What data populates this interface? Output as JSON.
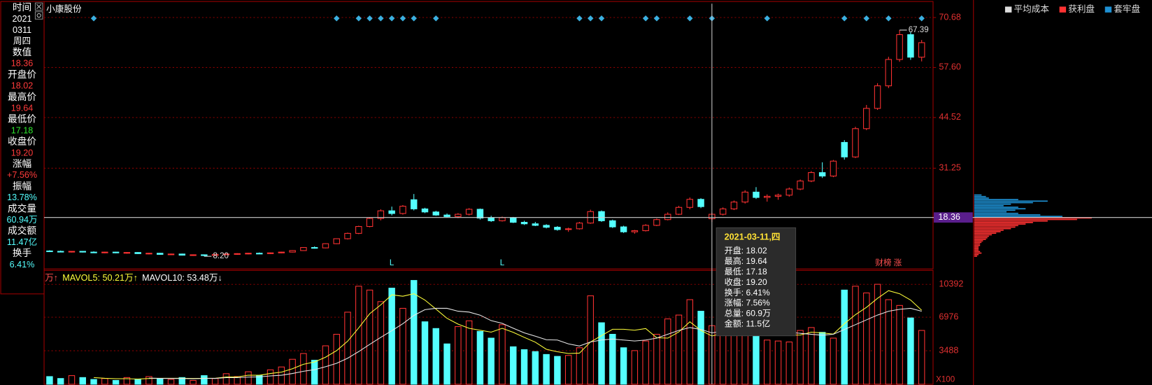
{
  "info_panel": {
    "items": [
      {
        "label": "时间",
        "values": [
          "2021",
          "0311",
          "周四"
        ],
        "color": "#ffffff"
      },
      {
        "label": "数值",
        "values": [
          "18.36"
        ],
        "color": "#ff3b3b"
      },
      {
        "label": "开盘价",
        "values": [
          "18.02"
        ],
        "color": "#ff3b3b"
      },
      {
        "label": "最高价",
        "values": [
          "19.64"
        ],
        "color": "#ff3b3b"
      },
      {
        "label": "最低价",
        "values": [
          "17.18"
        ],
        "color": "#2ee82e"
      },
      {
        "label": "收盘价",
        "values": [
          "19.20"
        ],
        "color": "#ff3b3b"
      },
      {
        "label": "涨幅",
        "values": [
          "+7.56%"
        ],
        "color": "#ff3b3b"
      },
      {
        "label": "振幅",
        "values": [
          "13.78%"
        ],
        "color": "#54ffff"
      },
      {
        "label": "成交量",
        "values": [
          "60.94万"
        ],
        "color": "#54ffff"
      },
      {
        "label": "成交额",
        "values": [
          "11.47亿"
        ],
        "color": "#54ffff"
      },
      {
        "label": "换手",
        "values": [
          "6.41%"
        ],
        "color": "#54ffff"
      }
    ]
  },
  "tooltip": {
    "title": "2021-03-11,四",
    "lines": [
      "开盘: 18.02",
      "最高: 19.64",
      "最低: 17.18",
      "收盘: 19.20",
      "换手: 6.41%",
      "涨幅: 7.56%",
      "总量: 60.9万",
      "金额: 11.5亿"
    ]
  },
  "chip_legend": [
    {
      "name": "平均成本",
      "color": "#dddddd"
    },
    {
      "name": "获利盘",
      "color": "#ff3232"
    },
    {
      "name": "套牢盘",
      "color": "#1e90d2"
    }
  ],
  "chart_data": {
    "type": "candlestick",
    "title": "小康股份",
    "up_color": "#ff3232",
    "down_color": "#54ffff",
    "grid": true,
    "categories": [
      null,
      null,
      null,
      null,
      null,
      null,
      null,
      null,
      null,
      null,
      null,
      null,
      null,
      null,
      null,
      null,
      null,
      null,
      null,
      null,
      null,
      null,
      null,
      null,
      null,
      null,
      null,
      null,
      null,
      null,
      null,
      null,
      null,
      null,
      null,
      null,
      null,
      null,
      null,
      null,
      null,
      null,
      null,
      null,
      null,
      null,
      null,
      null,
      null,
      null,
      null,
      null,
      null,
      null,
      null,
      null,
      null,
      null,
      null,
      null,
      null,
      null,
      null,
      null,
      null,
      null,
      null,
      null,
      null,
      null,
      null,
      null,
      null,
      null,
      null,
      null,
      null,
      null,
      null,
      null
    ],
    "candles": [
      [
        9.6,
        9.8,
        9.4,
        9.5
      ],
      [
        9.5,
        9.7,
        9.3,
        9.4
      ],
      [
        9.4,
        9.6,
        9.2,
        9.5
      ],
      [
        9.5,
        9.6,
        9.2,
        9.3
      ],
      [
        9.3,
        9.5,
        9.1,
        9.2
      ],
      [
        9.2,
        9.4,
        9.0,
        9.3
      ],
      [
        9.3,
        9.4,
        9.0,
        9.1
      ],
      [
        9.1,
        9.3,
        8.9,
        9.2
      ],
      [
        9.2,
        9.3,
        8.8,
        8.9
      ],
      [
        8.9,
        9.1,
        8.7,
        9.0
      ],
      [
        9.0,
        9.1,
        8.6,
        8.7
      ],
      [
        8.7,
        8.9,
        8.5,
        8.8
      ],
      [
        8.8,
        8.9,
        8.4,
        8.5
      ],
      [
        8.5,
        8.7,
        8.3,
        8.6
      ],
      [
        8.6,
        8.7,
        8.2,
        8.4
      ],
      [
        8.4,
        8.8,
        8.3,
        8.7
      ],
      [
        8.7,
        8.9,
        8.5,
        8.8
      ],
      [
        8.8,
        9.0,
        8.6,
        8.9
      ],
      [
        8.9,
        9.1,
        8.7,
        9.0
      ],
      [
        9.0,
        9.2,
        8.8,
        8.9
      ],
      [
        8.9,
        9.2,
        8.8,
        9.1
      ],
      [
        9.1,
        9.4,
        9.0,
        9.3
      ],
      [
        9.3,
        9.8,
        9.2,
        9.7
      ],
      [
        9.7,
        10.6,
        9.6,
        10.5
      ],
      [
        10.5,
        10.8,
        10.2,
        10.4
      ],
      [
        10.4,
        11.6,
        10.3,
        11.5
      ],
      [
        11.5,
        12.9,
        11.4,
        12.8
      ],
      [
        12.8,
        14.4,
        12.6,
        14.2
      ],
      [
        14.2,
        16.2,
        14.0,
        16.0
      ],
      [
        16.0,
        18.4,
        15.8,
        18.1
      ],
      [
        18.1,
        20.5,
        17.6,
        20.1
      ],
      [
        20.1,
        21.2,
        18.9,
        19.4
      ],
      [
        19.4,
        21.6,
        19.1,
        21.3
      ],
      [
        23.0,
        24.5,
        20.2,
        20.6
      ],
      [
        20.6,
        20.9,
        19.5,
        19.8
      ],
      [
        19.8,
        20.1,
        18.8,
        19.0
      ],
      [
        19.0,
        19.4,
        18.3,
        18.6
      ],
      [
        18.6,
        19.5,
        18.2,
        19.2
      ],
      [
        19.2,
        20.8,
        18.9,
        20.5
      ],
      [
        20.5,
        20.7,
        17.8,
        18.2
      ],
      [
        18.2,
        18.8,
        17.2,
        17.5
      ],
      [
        17.5,
        18.6,
        17.3,
        18.3
      ],
      [
        18.3,
        18.5,
        16.9,
        17.1
      ],
      [
        17.1,
        17.5,
        16.4,
        16.7
      ],
      [
        16.7,
        17.2,
        16.1,
        16.3
      ],
      [
        16.3,
        16.6,
        15.5,
        15.8
      ],
      [
        15.8,
        16.1,
        14.9,
        15.2
      ],
      [
        15.2,
        15.7,
        14.6,
        15.4
      ],
      [
        15.4,
        17.2,
        15.2,
        16.9
      ],
      [
        16.9,
        20.4,
        16.7,
        19.9
      ],
      [
        19.9,
        20.2,
        17.2,
        17.5
      ],
      [
        17.5,
        17.8,
        15.6,
        15.9
      ],
      [
        15.9,
        16.2,
        14.3,
        14.6
      ],
      [
        14.6,
        15.1,
        14.1,
        14.9
      ],
      [
        14.9,
        16.6,
        14.7,
        16.3
      ],
      [
        16.3,
        18.1,
        16.1,
        17.8
      ],
      [
        17.8,
        19.7,
        17.6,
        19.2
      ],
      [
        19.2,
        21.4,
        19.0,
        21.0
      ],
      [
        21.0,
        23.6,
        20.5,
        23.1
      ],
      [
        23.1,
        23.4,
        20.8,
        21.2
      ],
      [
        18.02,
        19.64,
        17.18,
        19.2
      ],
      [
        19.2,
        21.0,
        18.9,
        20.6
      ],
      [
        20.6,
        22.8,
        20.3,
        22.4
      ],
      [
        22.4,
        25.5,
        22.0,
        25.0
      ],
      [
        25.0,
        26.3,
        23.2,
        23.6
      ],
      [
        23.6,
        24.4,
        22.5,
        23.9
      ],
      [
        23.9,
        24.6,
        23.0,
        24.2
      ],
      [
        24.2,
        26.2,
        23.8,
        25.8
      ],
      [
        25.8,
        28.3,
        25.5,
        27.9
      ],
      [
        27.9,
        30.5,
        27.6,
        30.1
      ],
      [
        30.1,
        32.8,
        28.7,
        29.2
      ],
      [
        29.2,
        33.4,
        28.9,
        33.1
      ],
      [
        38.0,
        38.6,
        33.5,
        34.2
      ],
      [
        34.2,
        42.1,
        33.9,
        41.6
      ],
      [
        41.6,
        47.8,
        41.2,
        46.9
      ],
      [
        46.9,
        53.5,
        46.5,
        52.8
      ],
      [
        52.8,
        60.4,
        52.2,
        59.7
      ],
      [
        59.7,
        67.39,
        59.1,
        66.2
      ],
      [
        66.2,
        66.8,
        59.6,
        60.3
      ],
      [
        60.3,
        64.8,
        59.2,
        64.1
      ]
    ],
    "ylim": [
      4.9,
      74.3
    ],
    "yticks": [
      70.68,
      {
        "value": 57.6,
        "label": "57.60"
      },
      44.52,
      31.25
    ],
    "crosshair": {
      "index": 60,
      "value": 18.36
    },
    "low_label": {
      "index": 14,
      "value": 8.2,
      "label": "8.20"
    },
    "high_label": {
      "index": 77,
      "value": 67.39
    },
    "event_markers": [
      4,
      26,
      28,
      29,
      30,
      31,
      32,
      33,
      35,
      48,
      49,
      50,
      54,
      55,
      58,
      60,
      65,
      72,
      74,
      76,
      79
    ],
    "annotations": [
      {
        "index": 31,
        "text": "L"
      },
      {
        "index": 41,
        "text": "L"
      },
      {
        "index": 76,
        "text": "财榜 涨"
      }
    ],
    "volume": {
      "values": [
        800,
        600,
        900,
        700,
        500,
        600,
        400,
        700,
        500,
        800,
        600,
        500,
        700,
        400,
        900,
        600,
        1100,
        800,
        1300,
        900,
        1500,
        1800,
        2600,
        3200,
        2500,
        4000,
        5200,
        7500,
        10200,
        9800,
        8600,
        10000,
        7900,
        10800,
        6500,
        5800,
        4200,
        6000,
        6600,
        5500,
        4800,
        6200,
        3900,
        3600,
        3400,
        3100,
        2900,
        3000,
        3800,
        9200,
        6400,
        5200,
        3800,
        3500,
        4500,
        5200,
        6800,
        7200,
        8800,
        7600,
        6094,
        6000,
        6600,
        7000,
        5000,
        4600,
        4500,
        4400,
        5600,
        5900,
        5400,
        4800,
        9800,
        10200,
        9500,
        10400,
        8800,
        8200,
        6900,
        5600
      ],
      "ylim": [
        0,
        11694
      ],
      "yticks": [
        3488,
        6976,
        10392
      ],
      "unit_label": "X100",
      "legend": [
        {
          "text": "万↑",
          "color": "#ff5050"
        },
        {
          "text": "MAVOL5: 50.21万↑",
          "color": "#ffff3a"
        },
        {
          "text": "MAVOL10: 53.48万↓",
          "color": "#ffffff"
        }
      ],
      "series": [
        {
          "color": "#ffff3a",
          "values": [
            null,
            null,
            null,
            null,
            700,
            620,
            580,
            580,
            540,
            600,
            620,
            620,
            620,
            600,
            620,
            620,
            760,
            760,
            940,
            940,
            1120,
            1260,
            1620,
            2080,
            2320,
            2820,
            3500,
            4480,
            5860,
            7340,
            8260,
            9300,
            9160,
            9420,
            8760,
            7820,
            6860,
            6260,
            5820,
            5620,
            5420,
            5820,
            5400,
            4880,
            4380,
            3640,
            3380,
            3200,
            3240,
            4400,
            5060,
            5720,
            5720,
            5620,
            5800,
            4840,
            4800,
            5440,
            6500,
            5600,
            5021,
            5300,
            5600,
            6760,
            6140,
            5840,
            5540,
            5100,
            5120,
            5420,
            5340,
            5220,
            6300,
            7240,
            8000,
            8940,
            9740,
            9420,
            8760,
            7700
          ]
        },
        {
          "color": "#e8e8e8",
          "values": [
            null,
            null,
            null,
            null,
            null,
            null,
            null,
            null,
            null,
            640,
            610,
            600,
            600,
            570,
            610,
            610,
            690,
            690,
            740,
            770,
            870,
            940,
            1120,
            1350,
            1520,
            1830,
            2180,
            2710,
            3400,
            4150,
            4880,
            5570,
            6300,
            7160,
            7760,
            7900,
            7900,
            7600,
            7510,
            7190,
            6620,
            6340,
            5830,
            5350,
            5000,
            4630,
            4600,
            4200,
            3980,
            4400,
            4600,
            4700,
            4600,
            4500,
            4600,
            4800,
            5200,
            5600,
            5900,
            5700,
            5348,
            5500,
            5800,
            6000,
            5900,
            5800,
            5600,
            5400,
            5300,
            5200,
            5100,
            5200,
            5700,
            6200,
            6700,
            7200,
            7600,
            7800,
            7900,
            7600
          ]
        }
      ]
    },
    "chip_distribution": {
      "prices": [
        24.2,
        23.8,
        23.4,
        23.0,
        22.6,
        22.2,
        21.8,
        21.4,
        21.0,
        20.6,
        20.2,
        19.8,
        19.4,
        19.0,
        18.6,
        18.2,
        17.8,
        17.4,
        17.0,
        16.6,
        16.2,
        15.8,
        15.4,
        15.0,
        14.6,
        14.2,
        13.8,
        13.4,
        13.0,
        12.6,
        12.2,
        11.8,
        11.4,
        11.0,
        10.6,
        10.2,
        9.8,
        9.4,
        9.0,
        8.6,
        8.2
      ],
      "values": [
        5,
        8,
        10,
        30,
        50,
        40,
        25,
        20,
        30,
        35,
        28,
        22,
        30,
        45,
        60,
        80,
        70,
        50,
        40,
        35,
        30,
        28,
        25,
        20,
        18,
        15,
        12,
        10,
        9,
        8,
        6,
        5,
        4,
        4,
        3,
        3,
        3,
        4,
        5,
        3,
        2
      ],
      "xlim": [
        0,
        100
      ]
    }
  }
}
